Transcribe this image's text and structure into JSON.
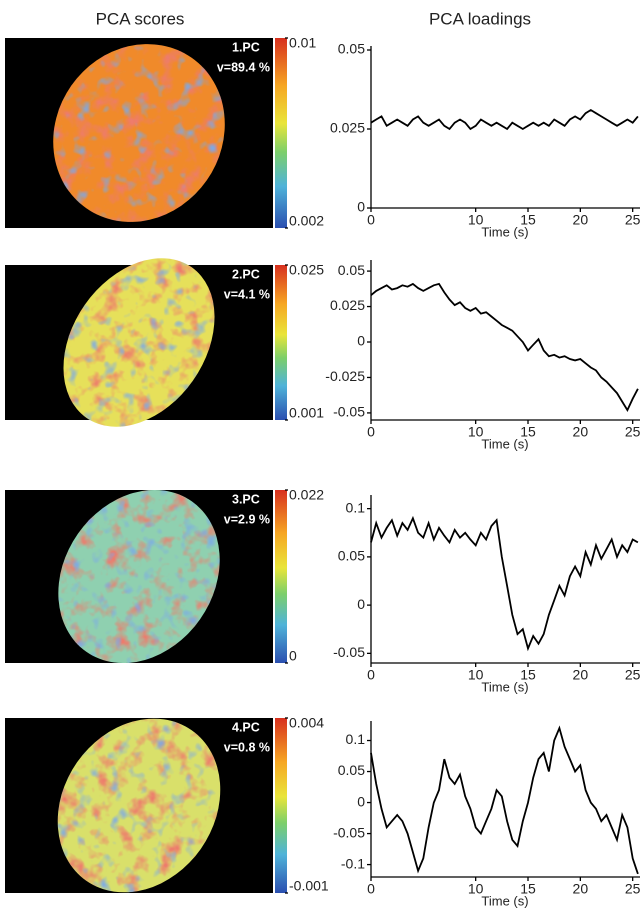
{
  "headers": {
    "scores": "PCA scores",
    "loadings": "PCA loadings"
  },
  "chart_data": [
    {
      "type": "line",
      "pc_label": "1.PC",
      "variance_label": "v=89.4 %",
      "colorbar_ticks": [
        0.002,
        0.01
      ],
      "colorbar_lim": [
        0.002,
        0.01
      ],
      "xlabel": "Time (s)",
      "xlim": [
        0,
        25.7
      ],
      "xticks": [
        0,
        10,
        15,
        20,
        25
      ],
      "ylim": [
        0,
        0.05
      ],
      "yticks": [
        0,
        0.025,
        0.05
      ],
      "color": "#000000",
      "x": [
        0,
        0.5,
        1,
        1.5,
        2,
        2.5,
        3,
        3.5,
        4,
        4.5,
        5,
        5.5,
        6,
        6.5,
        7,
        7.5,
        8,
        8.5,
        9,
        9.5,
        10,
        10.5,
        11,
        11.5,
        12,
        12.5,
        13,
        13.5,
        14,
        14.5,
        15,
        15.5,
        16,
        16.5,
        17,
        17.5,
        18,
        18.5,
        19,
        19.5,
        20,
        20.5,
        21,
        21.5,
        22,
        22.5,
        23,
        23.5,
        24,
        24.5,
        25,
        25.5
      ],
      "values": [
        0.027,
        0.028,
        0.029,
        0.026,
        0.027,
        0.028,
        0.027,
        0.026,
        0.028,
        0.029,
        0.027,
        0.026,
        0.027,
        0.028,
        0.026,
        0.025,
        0.027,
        0.028,
        0.027,
        0.025,
        0.026,
        0.028,
        0.027,
        0.026,
        0.027,
        0.026,
        0.025,
        0.027,
        0.026,
        0.025,
        0.026,
        0.027,
        0.026,
        0.027,
        0.026,
        0.028,
        0.027,
        0.026,
        0.028,
        0.029,
        0.028,
        0.03,
        0.031,
        0.03,
        0.029,
        0.028,
        0.027,
        0.026,
        0.027,
        0.028,
        0.027,
        0.029
      ]
    },
    {
      "type": "line",
      "pc_label": "2.PC",
      "variance_label": "v=4.1 %",
      "colorbar_ticks": [
        0.001,
        0.025
      ],
      "colorbar_lim": [
        0.001,
        0.025
      ],
      "xlabel": "Time (s)",
      "xlim": [
        0,
        25.7
      ],
      "xticks": [
        0,
        10,
        15,
        20,
        25
      ],
      "ylim": [
        -0.055,
        0.055
      ],
      "yticks": [
        -0.05,
        -0.025,
        0,
        0.025,
        0.05
      ],
      "color": "#000000",
      "x": [
        0,
        0.5,
        1,
        1.5,
        2,
        2.5,
        3,
        3.5,
        4,
        4.5,
        5,
        5.5,
        6,
        6.5,
        7,
        7.5,
        8,
        8.5,
        9,
        9.5,
        10,
        10.5,
        11,
        11.5,
        12,
        12.5,
        13,
        13.5,
        14,
        14.5,
        15,
        15.5,
        16,
        16.5,
        17,
        17.5,
        18,
        18.5,
        19,
        19.5,
        20,
        20.5,
        21,
        21.5,
        22,
        22.5,
        23,
        23.5,
        24,
        24.5,
        25,
        25.5
      ],
      "values": [
        0.033,
        0.036,
        0.038,
        0.04,
        0.037,
        0.038,
        0.04,
        0.039,
        0.041,
        0.038,
        0.036,
        0.038,
        0.04,
        0.041,
        0.035,
        0.03,
        0.026,
        0.028,
        0.024,
        0.022,
        0.024,
        0.02,
        0.021,
        0.018,
        0.015,
        0.012,
        0.01,
        0.008,
        0.004,
        0.0,
        -0.006,
        -0.002,
        0.002,
        -0.006,
        -0.01,
        -0.009,
        -0.011,
        -0.01,
        -0.012,
        -0.013,
        -0.012,
        -0.015,
        -0.018,
        -0.02,
        -0.025,
        -0.028,
        -0.032,
        -0.036,
        -0.042,
        -0.048,
        -0.04,
        -0.033
      ]
    },
    {
      "type": "line",
      "pc_label": "3.PC",
      "variance_label": "v=2.9 %",
      "colorbar_ticks": [
        0,
        0.022
      ],
      "colorbar_lim": [
        0,
        0.022
      ],
      "xlabel": "Time (s)",
      "xlim": [
        0,
        25.7
      ],
      "xticks": [
        0,
        10,
        15,
        20,
        25
      ],
      "ylim": [
        -0.06,
        0.11
      ],
      "yticks": [
        -0.05,
        0,
        0.05,
        0.1
      ],
      "color": "#000000",
      "x": [
        0,
        0.5,
        1,
        1.5,
        2,
        2.5,
        3,
        3.5,
        4,
        4.5,
        5,
        5.5,
        6,
        6.5,
        7,
        7.5,
        8,
        8.5,
        9,
        9.5,
        10,
        10.5,
        11,
        11.5,
        12,
        12.5,
        13,
        13.5,
        14,
        14.5,
        15,
        15.5,
        16,
        16.5,
        17,
        17.5,
        18,
        18.5,
        19,
        19.5,
        20,
        20.5,
        21,
        21.5,
        22,
        22.5,
        23,
        23.5,
        24,
        24.5,
        25,
        25.5
      ],
      "values": [
        0.065,
        0.085,
        0.07,
        0.08,
        0.088,
        0.072,
        0.085,
        0.078,
        0.09,
        0.075,
        0.07,
        0.085,
        0.068,
        0.08,
        0.072,
        0.065,
        0.078,
        0.07,
        0.075,
        0.068,
        0.062,
        0.075,
        0.068,
        0.082,
        0.088,
        0.05,
        0.02,
        -0.01,
        -0.03,
        -0.025,
        -0.045,
        -0.032,
        -0.04,
        -0.03,
        -0.01,
        0.005,
        0.02,
        0.01,
        0.03,
        0.04,
        0.03,
        0.055,
        0.042,
        0.062,
        0.048,
        0.058,
        0.068,
        0.05,
        0.062,
        0.055,
        0.068,
        0.065
      ]
    },
    {
      "type": "line",
      "pc_label": "4.PC",
      "variance_label": "v=0.8 %",
      "colorbar_ticks": [
        -0.001,
        0.004
      ],
      "colorbar_lim": [
        -0.001,
        0.004
      ],
      "xlabel": "Time (s)",
      "xlim": [
        0,
        25.7
      ],
      "xticks": [
        0,
        10,
        15,
        20,
        25
      ],
      "ylim": [
        -0.12,
        0.125
      ],
      "yticks": [
        -0.1,
        -0.05,
        0,
        0.05,
        0.1
      ],
      "color": "#000000",
      "x": [
        0,
        0.5,
        1,
        1.5,
        2,
        2.5,
        3,
        3.5,
        4,
        4.5,
        5,
        5.5,
        6,
        6.5,
        7,
        7.5,
        8,
        8.5,
        9,
        9.5,
        10,
        10.5,
        11,
        11.5,
        12,
        12.5,
        13,
        13.5,
        14,
        14.5,
        15,
        15.5,
        16,
        16.5,
        17,
        17.5,
        18,
        18.5,
        19,
        19.5,
        20,
        20.5,
        21,
        21.5,
        22,
        22.5,
        23,
        23.5,
        24,
        24.5,
        25,
        25.5
      ],
      "values": [
        0.08,
        0.03,
        -0.01,
        -0.04,
        -0.03,
        -0.02,
        -0.03,
        -0.05,
        -0.08,
        -0.11,
        -0.09,
        -0.04,
        0.0,
        0.02,
        0.07,
        0.04,
        0.03,
        0.045,
        0.01,
        -0.01,
        -0.04,
        -0.05,
        -0.03,
        -0.01,
        0.02,
        0.01,
        -0.03,
        -0.06,
        -0.07,
        -0.03,
        0.0,
        0.04,
        0.07,
        0.08,
        0.05,
        0.1,
        0.12,
        0.09,
        0.07,
        0.05,
        0.06,
        0.02,
        0.0,
        -0.01,
        -0.03,
        -0.02,
        -0.04,
        -0.06,
        -0.02,
        -0.04,
        -0.09,
        -0.115
      ]
    }
  ]
}
